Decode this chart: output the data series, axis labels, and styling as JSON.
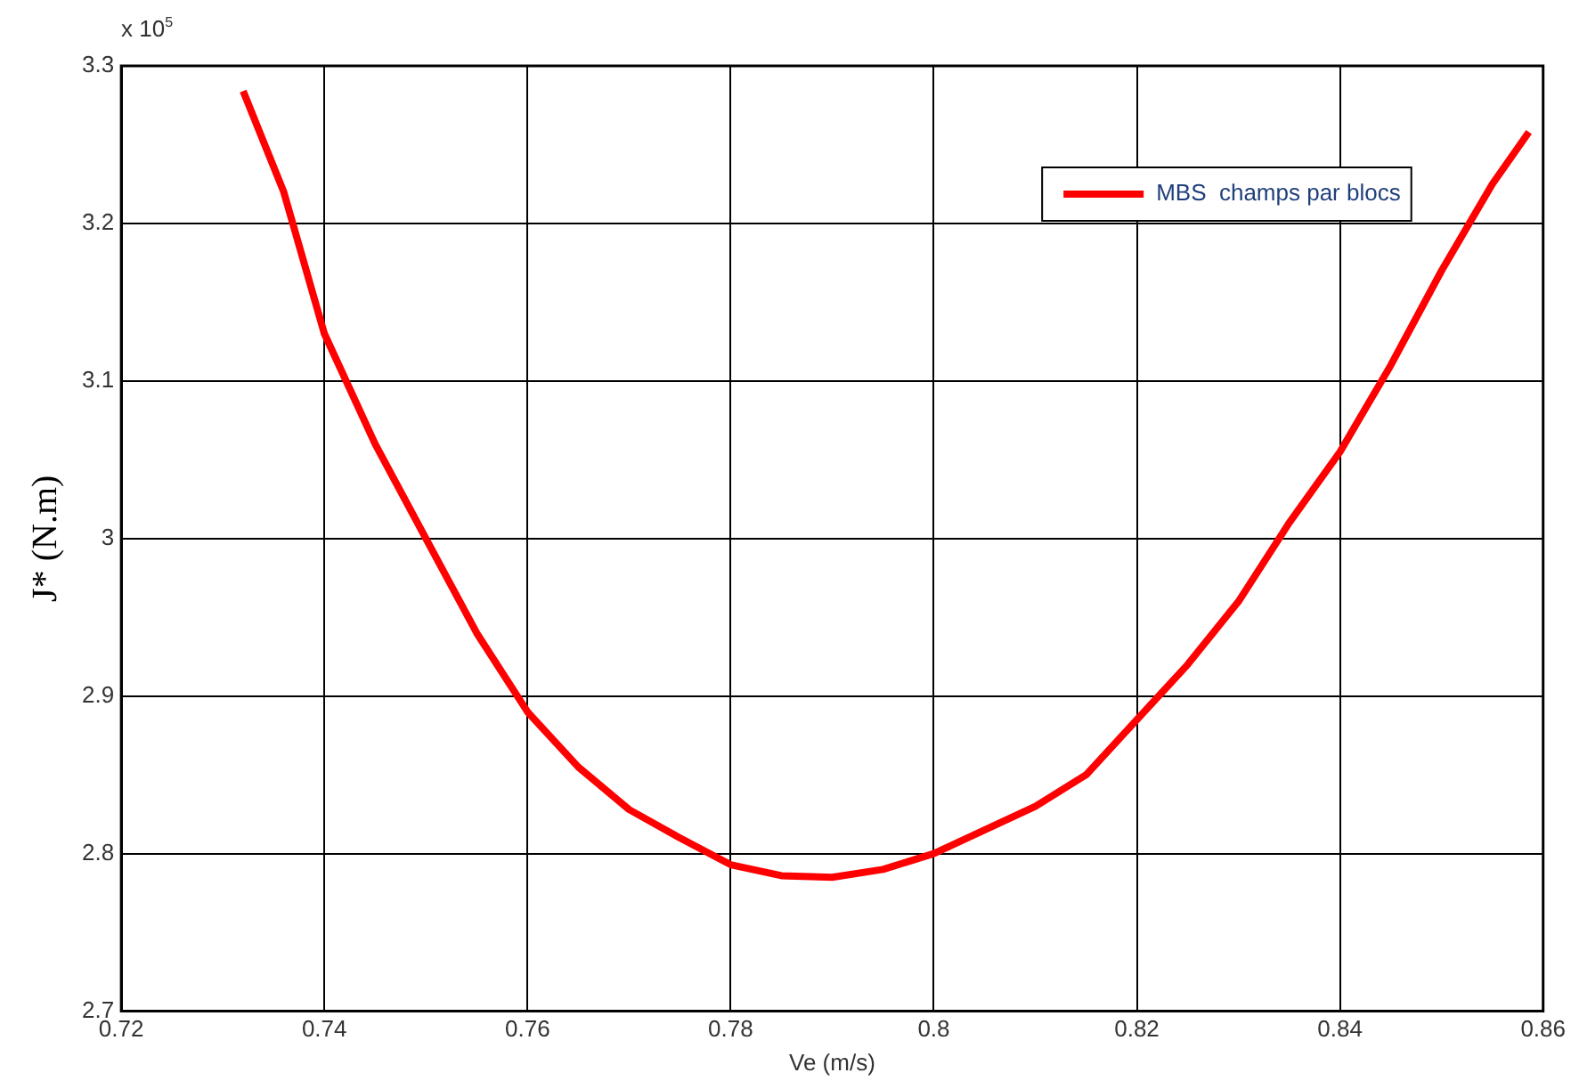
{
  "chart_data": {
    "type": "line",
    "xlabel": "Ve (m/s)",
    "ylabel": "J* (N.m)",
    "annotations": [
      "x 10$^{5}$"
    ],
    "xlim": [
      0.72,
      0.86
    ],
    "xticks": [
      0.72,
      0.74,
      0.76,
      0.78,
      0.8,
      0.82,
      0.84,
      0.86
    ],
    "ylim": [
      2.7,
      3.3
    ],
    "yticks": [
      2.7,
      2.8,
      2.9,
      3,
      3.1,
      3.2,
      3.3
    ],
    "grid": true,
    "legend": "top right",
    "marker": "none",
    "line_style": "solid",
    "series": [
      {
        "name": "MBS  champs par blocs",
        "color": "#ff0000",
        "x": [
          0.732,
          0.736,
          0.74,
          0.745,
          0.75,
          0.755,
          0.76,
          0.765,
          0.77,
          0.775,
          0.78,
          0.785,
          0.79,
          0.795,
          0.8,
          0.805,
          0.81,
          0.815,
          0.82,
          0.825,
          0.83,
          0.835,
          0.84,
          0.845,
          0.85,
          0.855,
          0.8586
        ],
        "values": [
          3.284,
          3.22,
          3.13,
          3.06,
          3.0,
          2.94,
          2.89,
          2.855,
          2.828,
          2.81,
          2.793,
          2.786,
          2.785,
          2.79,
          2.8,
          2.815,
          2.83,
          2.85,
          2.885,
          2.92,
          2.96,
          3.01,
          3.055,
          3.11,
          3.17,
          3.225,
          3.258
        ]
      }
    ]
  }
}
